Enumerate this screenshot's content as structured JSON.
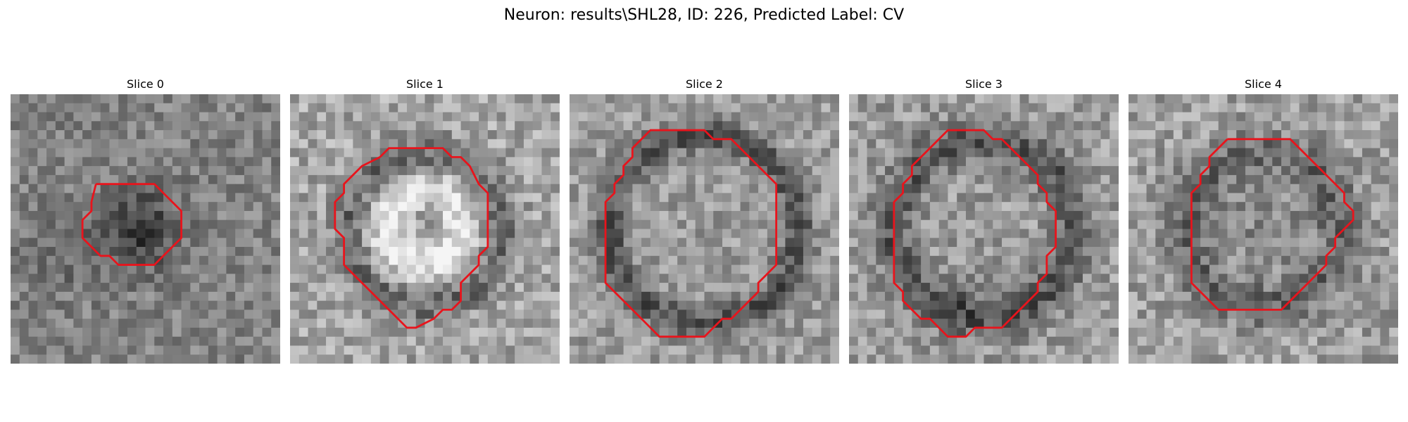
{
  "figure": {
    "title": "Neuron: results\\SHL28, ID: 226, Predicted Label: CV",
    "contour_color": "#e8141c"
  },
  "panels": [
    {
      "title": "Slice 0",
      "pattern": "dark-center",
      "base": 130,
      "noise": 34,
      "contour": [
        [
          9.5,
          10
        ],
        [
          10.5,
          10
        ],
        [
          11,
          10
        ],
        [
          12,
          10
        ],
        [
          13,
          10
        ],
        [
          14,
          10
        ],
        [
          15,
          10
        ],
        [
          16,
          10
        ],
        [
          17,
          11
        ],
        [
          18,
          12
        ],
        [
          19,
          13
        ],
        [
          19,
          14
        ],
        [
          19,
          15
        ],
        [
          19,
          16
        ],
        [
          18,
          17
        ],
        [
          17,
          18
        ],
        [
          16,
          19
        ],
        [
          15,
          19
        ],
        [
          14,
          19
        ],
        [
          13,
          19
        ],
        [
          12,
          19
        ],
        [
          11,
          18
        ],
        [
          10,
          18
        ],
        [
          9,
          17
        ],
        [
          8,
          16
        ],
        [
          8,
          15
        ],
        [
          8,
          14
        ],
        [
          9,
          13
        ],
        [
          9,
          12
        ],
        [
          9.5,
          10
        ]
      ]
    },
    {
      "title": "Slice 1",
      "pattern": "bright-ring",
      "base": 165,
      "noise": 42,
      "contour": [
        [
          10,
          7
        ],
        [
          11,
          6
        ],
        [
          12,
          6
        ],
        [
          13,
          6
        ],
        [
          14,
          6
        ],
        [
          15,
          6
        ],
        [
          16,
          6
        ],
        [
          17,
          6
        ],
        [
          18,
          7
        ],
        [
          19,
          7
        ],
        [
          20,
          8
        ],
        [
          21,
          10
        ],
        [
          22,
          11
        ],
        [
          22,
          12
        ],
        [
          22,
          13
        ],
        [
          22,
          14
        ],
        [
          22,
          15
        ],
        [
          22,
          16
        ],
        [
          22,
          17
        ],
        [
          21,
          18
        ],
        [
          21,
          19
        ],
        [
          20,
          20
        ],
        [
          19,
          21
        ],
        [
          19,
          22
        ],
        [
          19,
          23
        ],
        [
          18,
          24
        ],
        [
          17,
          24
        ],
        [
          16,
          25
        ],
        [
          14,
          26
        ],
        [
          13,
          26
        ],
        [
          12,
          25
        ],
        [
          11,
          24
        ],
        [
          10,
          23
        ],
        [
          9,
          22
        ],
        [
          8,
          21
        ],
        [
          7,
          20
        ],
        [
          6,
          19
        ],
        [
          6,
          17
        ],
        [
          6,
          16
        ],
        [
          5,
          15
        ],
        [
          5,
          14
        ],
        [
          5,
          13
        ],
        [
          5,
          12
        ],
        [
          6,
          11
        ],
        [
          6,
          10
        ],
        [
          7,
          9
        ],
        [
          8,
          8
        ],
        [
          9,
          7.5
        ],
        [
          10,
          7
        ]
      ]
    },
    {
      "title": "Slice 2",
      "pattern": "dark-ring",
      "base": 150,
      "noise": 38,
      "contour": [
        [
          8,
          5
        ],
        [
          9,
          4
        ],
        [
          10,
          4
        ],
        [
          11,
          4
        ],
        [
          12,
          4
        ],
        [
          13,
          4
        ],
        [
          14,
          4
        ],
        [
          15,
          4
        ],
        [
          16,
          5
        ],
        [
          17,
          5
        ],
        [
          18,
          5
        ],
        [
          19,
          6
        ],
        [
          20,
          7
        ],
        [
          21,
          8
        ],
        [
          22,
          9
        ],
        [
          23,
          10
        ],
        [
          23,
          11
        ],
        [
          23,
          12
        ],
        [
          23,
          13
        ],
        [
          23,
          14
        ],
        [
          23,
          15
        ],
        [
          23,
          16
        ],
        [
          23,
          17
        ],
        [
          23,
          18
        ],
        [
          23,
          19
        ],
        [
          22,
          20
        ],
        [
          21,
          21
        ],
        [
          21,
          22
        ],
        [
          20,
          23
        ],
        [
          19,
          24
        ],
        [
          18,
          25
        ],
        [
          17,
          25
        ],
        [
          16,
          26
        ],
        [
          15,
          27
        ],
        [
          14,
          27
        ],
        [
          13,
          27
        ],
        [
          12,
          27
        ],
        [
          11,
          27
        ],
        [
          10,
          27
        ],
        [
          9,
          26
        ],
        [
          8,
          25
        ],
        [
          7,
          24
        ],
        [
          6,
          23
        ],
        [
          5,
          22
        ],
        [
          4,
          21
        ],
        [
          4,
          20
        ],
        [
          4,
          19
        ],
        [
          4,
          18
        ],
        [
          4,
          17
        ],
        [
          4,
          16
        ],
        [
          4,
          15
        ],
        [
          4,
          14
        ],
        [
          4,
          13
        ],
        [
          4,
          12
        ],
        [
          5,
          11
        ],
        [
          5,
          10
        ],
        [
          6,
          9
        ],
        [
          6,
          8
        ],
        [
          7,
          7
        ],
        [
          7,
          6
        ],
        [
          8,
          5
        ]
      ]
    },
    {
      "title": "Slice 3",
      "pattern": "thick-dark-ring",
      "base": 155,
      "noise": 40,
      "contour": [
        [
          10,
          5
        ],
        [
          11,
          4
        ],
        [
          12,
          4
        ],
        [
          13,
          4
        ],
        [
          14,
          4
        ],
        [
          15,
          4
        ],
        [
          16,
          5
        ],
        [
          17,
          5
        ],
        [
          18,
          6
        ],
        [
          19,
          7
        ],
        [
          20,
          8
        ],
        [
          21,
          9
        ],
        [
          21,
          10
        ],
        [
          22,
          11
        ],
        [
          22,
          12
        ],
        [
          23,
          13
        ],
        [
          23,
          14
        ],
        [
          23,
          15
        ],
        [
          23,
          16
        ],
        [
          23,
          17
        ],
        [
          22,
          18
        ],
        [
          22,
          19
        ],
        [
          22,
          20
        ],
        [
          21,
          21
        ],
        [
          21,
          22
        ],
        [
          20,
          23
        ],
        [
          19,
          24
        ],
        [
          18,
          25
        ],
        [
          17,
          26
        ],
        [
          16,
          26
        ],
        [
          15,
          26
        ],
        [
          14,
          26
        ],
        [
          13,
          27
        ],
        [
          12,
          27
        ],
        [
          11,
          27
        ],
        [
          10,
          26
        ],
        [
          9,
          25
        ],
        [
          8,
          25
        ],
        [
          7,
          24
        ],
        [
          6,
          23
        ],
        [
          6,
          22
        ],
        [
          5,
          21
        ],
        [
          5,
          20
        ],
        [
          5,
          19
        ],
        [
          5,
          18
        ],
        [
          5,
          17
        ],
        [
          5,
          16
        ],
        [
          5,
          15
        ],
        [
          5,
          14
        ],
        [
          5,
          13
        ],
        [
          5,
          12
        ],
        [
          6,
          11
        ],
        [
          6,
          10
        ],
        [
          7,
          9
        ],
        [
          7,
          8
        ],
        [
          8,
          7
        ],
        [
          9,
          6
        ],
        [
          10,
          5
        ]
      ]
    },
    {
      "title": "Slice 4",
      "pattern": "ring-center",
      "base": 158,
      "noise": 42,
      "contour": [
        [
          11,
          5
        ],
        [
          12,
          5
        ],
        [
          13,
          5
        ],
        [
          14,
          5
        ],
        [
          15,
          5
        ],
        [
          16,
          5
        ],
        [
          17,
          5
        ],
        [
          18,
          5
        ],
        [
          19,
          6
        ],
        [
          20,
          7
        ],
        [
          21,
          8
        ],
        [
          22,
          9
        ],
        [
          23,
          10
        ],
        [
          24,
          11
        ],
        [
          24,
          12
        ],
        [
          25,
          13
        ],
        [
          25,
          14
        ],
        [
          24,
          15
        ],
        [
          23,
          16
        ],
        [
          23,
          17
        ],
        [
          22,
          18
        ],
        [
          22,
          19
        ],
        [
          21,
          20
        ],
        [
          20,
          21
        ],
        [
          19,
          22
        ],
        [
          18,
          23
        ],
        [
          17,
          24
        ],
        [
          16,
          24
        ],
        [
          15,
          24
        ],
        [
          14,
          24
        ],
        [
          13,
          24
        ],
        [
          12,
          24
        ],
        [
          11,
          24
        ],
        [
          10,
          24
        ],
        [
          9,
          23
        ],
        [
          8,
          22
        ],
        [
          7,
          21
        ],
        [
          7,
          20
        ],
        [
          7,
          19
        ],
        [
          7,
          18
        ],
        [
          7,
          17
        ],
        [
          7,
          16
        ],
        [
          7,
          15
        ],
        [
          7,
          14
        ],
        [
          7,
          13
        ],
        [
          7,
          12
        ],
        [
          7,
          11
        ],
        [
          8,
          10
        ],
        [
          8,
          9
        ],
        [
          9,
          8
        ],
        [
          9,
          7
        ],
        [
          10,
          6
        ],
        [
          11,
          5
        ]
      ]
    }
  ]
}
